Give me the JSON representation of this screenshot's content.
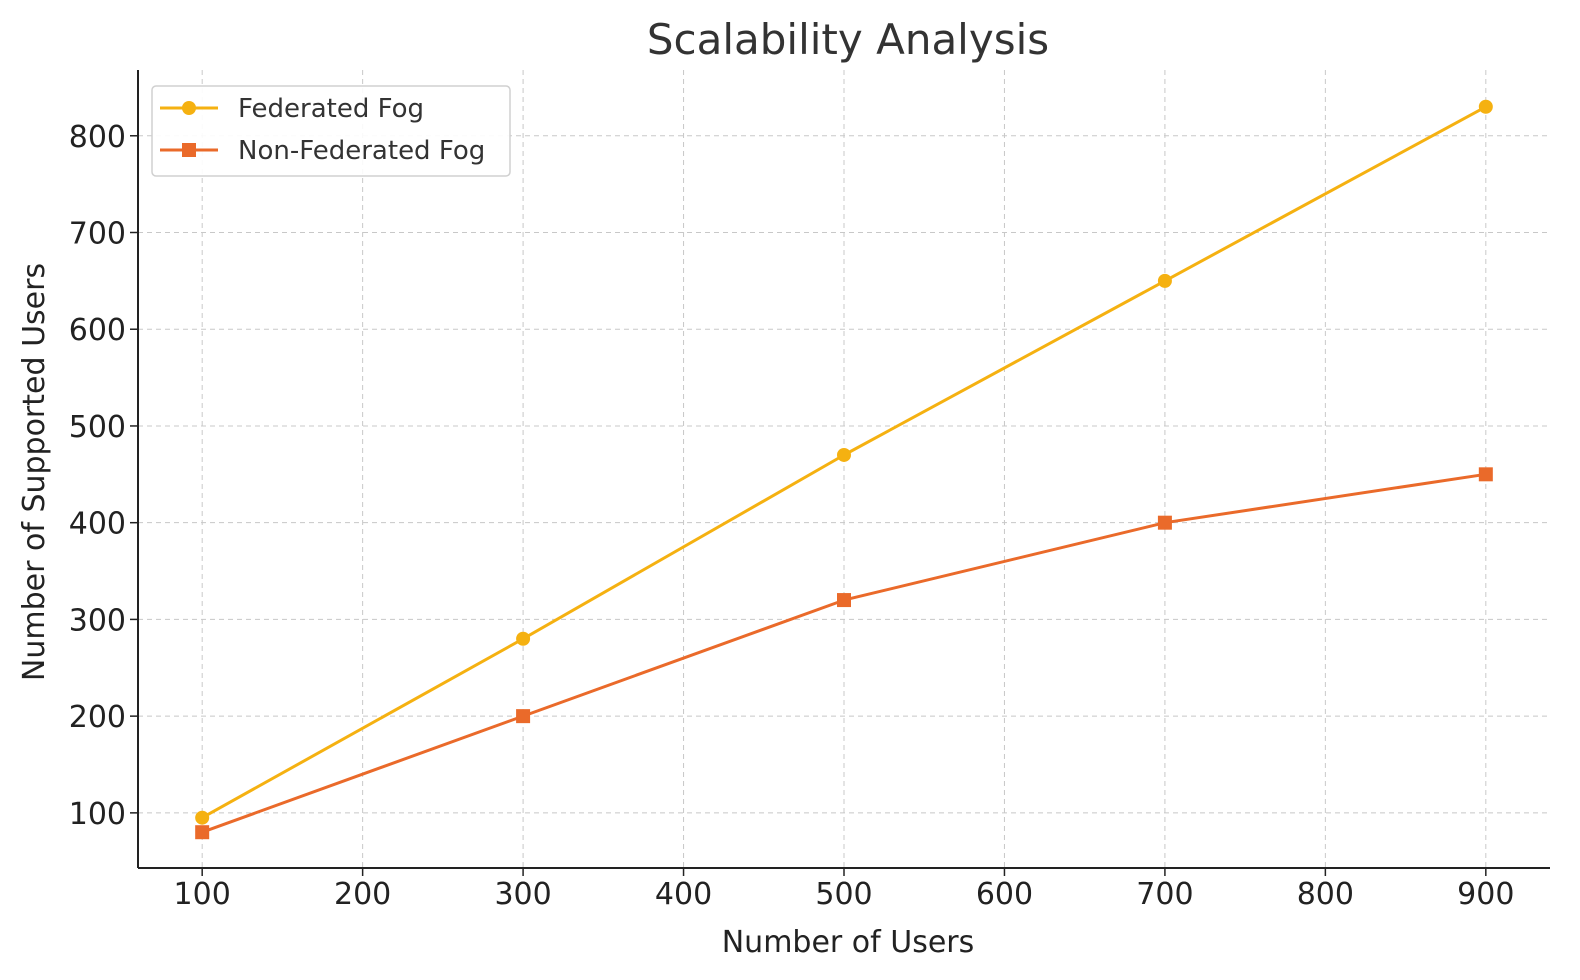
{
  "chart_data": {
    "type": "line",
    "title": "Scalability Analysis",
    "xlabel": "Number of Users",
    "ylabel": "Number of Supported Users",
    "x": [
      100,
      300,
      500,
      700,
      900
    ],
    "xlim": [
      60,
      940
    ],
    "ylim": [
      43,
      868
    ],
    "xticks": [
      100,
      200,
      300,
      400,
      500,
      600,
      700,
      800,
      900
    ],
    "yticks": [
      100,
      200,
      300,
      400,
      500,
      600,
      700,
      800
    ],
    "grid": true,
    "legend_position": "top-left",
    "series": [
      {
        "name": "Federated Fog",
        "values": [
          95,
          280,
          470,
          650,
          830
        ],
        "color": "#F5B111",
        "marker": "circle"
      },
      {
        "name": "Non-Federated Fog",
        "values": [
          80,
          200,
          320,
          400,
          450
        ],
        "color": "#EA6A2A",
        "marker": "square"
      }
    ]
  }
}
